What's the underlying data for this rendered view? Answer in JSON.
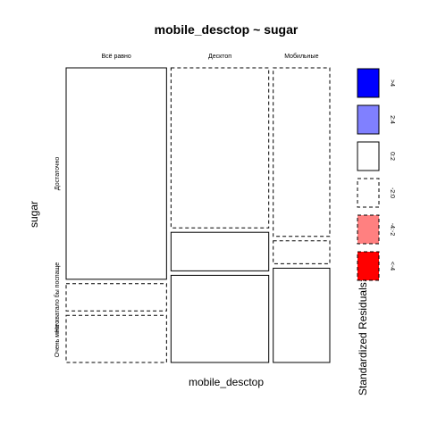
{
  "chart_data": {
    "type": "mosaic",
    "title": "mobile_desctop ~ sugar",
    "xlabel": "mobile_desctop",
    "ylabel": "sugar",
    "columns": [
      "Всё равно",
      "Десктоп",
      "Мобильные"
    ],
    "rows": [
      "Достаточно",
      "Не хватало бы поспаще",
      "Очень много"
    ],
    "column_share": [
      0.488,
      0.475,
      0.275
    ],
    "row_share_by_column": [
      [
        0.74,
        0.095,
        0.165
      ],
      [
        0.56,
        0.135,
        0.305
      ],
      [
        0.59,
        0.08,
        0.33
      ]
    ],
    "cell_borders": [
      [
        "solid",
        "dashed",
        "dashed"
      ],
      [
        "dashed",
        "solid",
        "solid"
      ],
      [
        "dashed",
        "dashed",
        "solid"
      ]
    ],
    "legend": {
      "title": "Standardized Residuals:",
      "items": [
        {
          "label": ">4",
          "color": "#0000ff",
          "border": "solid"
        },
        {
          "label": "2:4",
          "color": "#8080ff",
          "border": "solid"
        },
        {
          "label": "0:2",
          "color": "#ffffff",
          "border": "solid"
        },
        {
          "label": "-2:0",
          "color": "#ffffff",
          "border": "dashed"
        },
        {
          "label": "-4:-2",
          "color": "#ff8080",
          "border": "dashed"
        },
        {
          "label": "<-4",
          "color": "#ff0000",
          "border": "dashed"
        }
      ]
    }
  }
}
